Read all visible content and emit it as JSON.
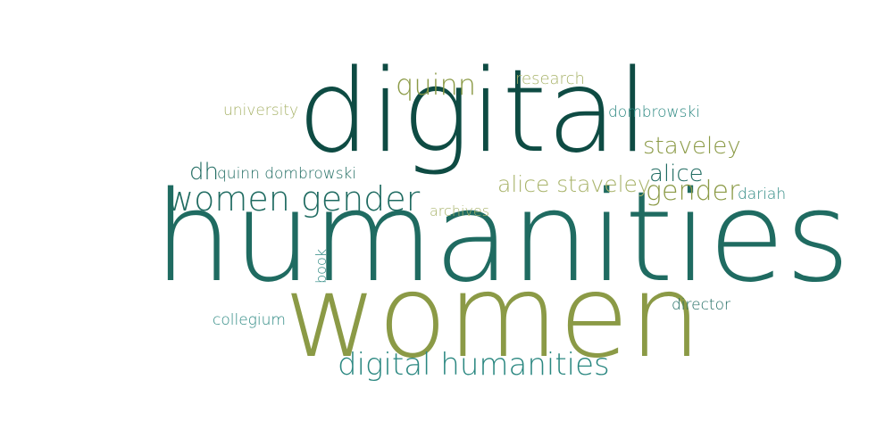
{
  "colors": {
    "dark_teal": "#0e4b43",
    "teal": "#1f6b61",
    "light_teal": "#2a8780",
    "olive": "#8b9a46",
    "light_olive": "#a8b36a"
  },
  "words": [
    {
      "text": "digital",
      "color": "#0e4b43"
    },
    {
      "text": "humanities",
      "color": "#1f6b61"
    },
    {
      "text": "women",
      "color": "#8b9a46"
    },
    {
      "text": "women gender",
      "color": "#1f6b61"
    },
    {
      "text": "digital humanities",
      "color": "#2a8780"
    },
    {
      "text": "quinn",
      "color": "#8b9a46"
    },
    {
      "text": "research",
      "color": "#a8b36a"
    },
    {
      "text": "university",
      "color": "#a8b36a"
    },
    {
      "text": "dombrowski",
      "color": "#2a8780"
    },
    {
      "text": "staveley",
      "color": "#8b9a46"
    },
    {
      "text": "dh",
      "color": "#1f6b61"
    },
    {
      "text": "quinn dombrowski",
      "color": "#1f6b61"
    },
    {
      "text": "alice",
      "color": "#1f6b61"
    },
    {
      "text": "alice staveley",
      "color": "#a8b36a"
    },
    {
      "text": "gender",
      "color": "#8b9a46"
    },
    {
      "text": "dariah",
      "color": "#2a8780"
    },
    {
      "text": "archives",
      "color": "#a8b36a"
    },
    {
      "text": "book",
      "color": "#2a8780"
    },
    {
      "text": "director",
      "color": "#1f6b61"
    },
    {
      "text": "collegium",
      "color": "#2a8780"
    }
  ]
}
